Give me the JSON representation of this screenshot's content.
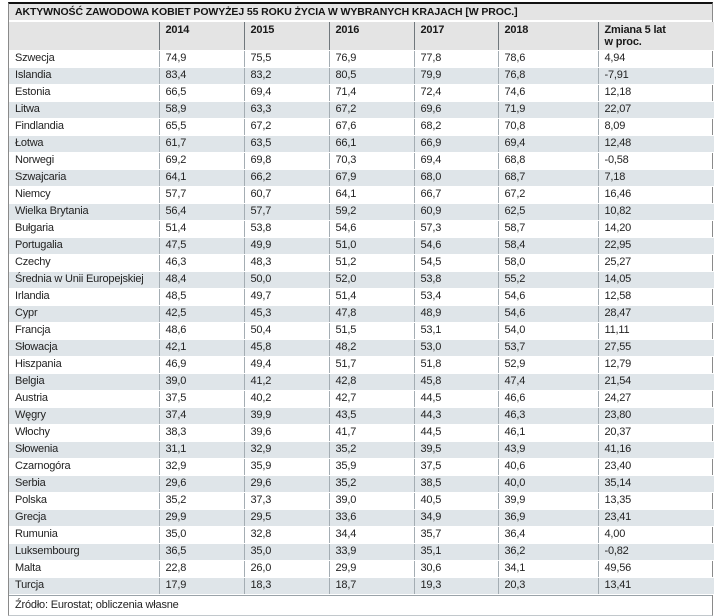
{
  "colors": {
    "header_bg": "#e4e4e4",
    "row_bg": "#ffffff",
    "row_alt_bg": "#dfe5e9",
    "top_border": "#111111",
    "side_border": "#8a8a8a",
    "header_separator": "#70777c",
    "cell_separator": "#a4adb3",
    "text": "#222222"
  },
  "chart_data": {
    "type": "table",
    "title": "AKTYWNOŚĆ ZAWODOWA KOBIET POWYŻEJ 55 ROKU ŻYCIA W WYBRANYCH KRAJACH [W PROC.]",
    "columns": [
      "2014",
      "2015",
      "2016",
      "2017",
      "2018",
      "Zmiana 5 lat\nw proc."
    ],
    "rows": [
      {
        "country": "Szwecja",
        "values": [
          "74,9",
          "75,5",
          "76,9",
          "77,8",
          "78,6",
          "4,94"
        ]
      },
      {
        "country": "Islandia",
        "values": [
          "83,4",
          "83,2",
          "80,5",
          "79,9",
          "76,8",
          "-7,91"
        ]
      },
      {
        "country": "Estonia",
        "values": [
          "66,5",
          "69,4",
          "71,4",
          "72,4",
          "74,6",
          "12,18"
        ]
      },
      {
        "country": "Litwa",
        "values": [
          "58,9",
          "63,3",
          "67,2",
          "69,6",
          "71,9",
          "22,07"
        ]
      },
      {
        "country": "Findlandia",
        "values": [
          "65,5",
          "67,2",
          "67,6",
          "68,2",
          "70,8",
          "8,09"
        ]
      },
      {
        "country": "Łotwa",
        "values": [
          "61,7",
          "63,5",
          "66,1",
          "66,9",
          "69,4",
          "12,48"
        ]
      },
      {
        "country": "Norwegi",
        "values": [
          "69,2",
          "69,8",
          "70,3",
          "69,4",
          "68,8",
          "-0,58"
        ]
      },
      {
        "country": "Szwajcaria",
        "values": [
          "64,1",
          "66,2",
          "67,9",
          "68,0",
          "68,7",
          "7,18"
        ]
      },
      {
        "country": "Niemcy",
        "values": [
          "57,7",
          "60,7",
          "64,1",
          "66,7",
          "67,2",
          "16,46"
        ]
      },
      {
        "country": "Wielka Brytania",
        "values": [
          "56,4",
          "57,7",
          "59,2",
          "60,9",
          "62,5",
          "10,82"
        ]
      },
      {
        "country": "Bułgaria",
        "values": [
          "51,4",
          "53,8",
          "54,6",
          "57,3",
          "58,7",
          "14,20"
        ]
      },
      {
        "country": "Portugalia",
        "values": [
          "47,5",
          "49,9",
          "51,0",
          "54,6",
          "58,4",
          "22,95"
        ]
      },
      {
        "country": "Czechy",
        "values": [
          "46,3",
          "48,3",
          "51,2",
          "54,5",
          "58,0",
          "25,27"
        ]
      },
      {
        "country": "Średnia w Unii Europejskiej",
        "values": [
          "48,4",
          "50,0",
          "52,0",
          "53,8",
          "55,2",
          "14,05"
        ]
      },
      {
        "country": "Irlandia",
        "values": [
          "48,5",
          "49,7",
          "51,4",
          "53,4",
          "54,6",
          "12,58"
        ]
      },
      {
        "country": "Cypr",
        "values": [
          "42,5",
          "45,3",
          "47,8",
          "48,9",
          "54,6",
          "28,47"
        ]
      },
      {
        "country": "Francja",
        "values": [
          "48,6",
          "50,4",
          "51,5",
          "53,1",
          "54,0",
          "11,11"
        ]
      },
      {
        "country": "Słowacja",
        "values": [
          "42,1",
          "45,8",
          "48,2",
          "53,0",
          "53,7",
          "27,55"
        ]
      },
      {
        "country": "Hiszpania",
        "values": [
          "46,9",
          "49,4",
          "51,7",
          "51,8",
          "52,9",
          "12,79"
        ]
      },
      {
        "country": "Belgia",
        "values": [
          "39,0",
          "41,2",
          "42,8",
          "45,8",
          "47,4",
          "21,54"
        ]
      },
      {
        "country": "Austria",
        "values": [
          "37,5",
          "40,2",
          "42,7",
          "44,5",
          "46,6",
          "24,27"
        ]
      },
      {
        "country": "Węgry",
        "values": [
          "37,4",
          "39,9",
          "43,5",
          "44,3",
          "46,3",
          "23,80"
        ]
      },
      {
        "country": "Włochy",
        "values": [
          "38,3",
          "39,6",
          "41,7",
          "44,5",
          "46,1",
          "20,37"
        ]
      },
      {
        "country": "Słowenia",
        "values": [
          "31,1",
          "32,9",
          "35,2",
          "39,5",
          "43,9",
          "41,16"
        ]
      },
      {
        "country": "Czarnogóra",
        "values": [
          "32,9",
          "35,9",
          "35,9",
          "37,5",
          "40,6",
          "23,40"
        ]
      },
      {
        "country": "Serbia",
        "values": [
          "29,6",
          "29,6",
          "35,2",
          "38,5",
          "40,0",
          "35,14"
        ]
      },
      {
        "country": "Polska",
        "values": [
          "35,2",
          "37,3",
          "39,0",
          "40,5",
          "39,9",
          "13,35"
        ]
      },
      {
        "country": "Grecja",
        "values": [
          "29,9",
          "29,5",
          "33,6",
          "34,9",
          "36,9",
          "23,41"
        ]
      },
      {
        "country": "Rumunia",
        "values": [
          "35,0",
          "32,8",
          "34,4",
          "35,7",
          "36,4",
          "4,00"
        ]
      },
      {
        "country": "Luksembourg",
        "values": [
          "36,5",
          "35,0",
          "33,9",
          "35,1",
          "36,2",
          "-0,82"
        ]
      },
      {
        "country": "Malta",
        "values": [
          "22,8",
          "26,0",
          "29,9",
          "30,6",
          "34,1",
          "49,56"
        ]
      },
      {
        "country": "Turcja",
        "values": [
          "17,9",
          "18,3",
          "18,7",
          "19,3",
          "20,3",
          "13,41"
        ]
      }
    ],
    "source": "Źródło: Eurostat; obliczenia własne"
  }
}
